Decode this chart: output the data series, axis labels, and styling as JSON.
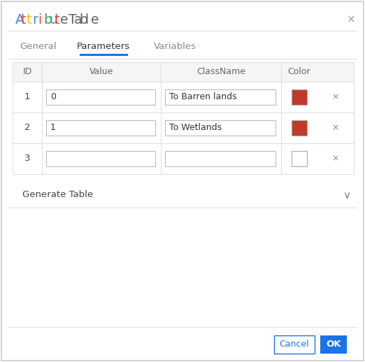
{
  "title_letters": [
    {
      "char": "A",
      "color": "#4285F4"
    },
    {
      "char": "t",
      "color": "#EA4335"
    },
    {
      "char": "t",
      "color": "#FBBC05"
    },
    {
      "char": "r",
      "color": "#4285F4"
    },
    {
      "char": "i",
      "color": "#EA4335"
    },
    {
      "char": "b",
      "color": "#34A853"
    },
    {
      "char": "u",
      "color": "#4285F4"
    },
    {
      "char": "t",
      "color": "#EA4335"
    },
    {
      "char": "e",
      "color": "#666666"
    },
    {
      "char": " ",
      "color": "#666666"
    },
    {
      "char": "T",
      "color": "#666666"
    },
    {
      "char": "a",
      "color": "#666666"
    },
    {
      "char": "b",
      "color": "#666666"
    },
    {
      "char": "l",
      "color": "#666666"
    },
    {
      "char": "e",
      "color": "#666666"
    }
  ],
  "close_symbol": "×",
  "tab_labels": [
    "General",
    "Parameters",
    "Variables"
  ],
  "active_tab_index": 1,
  "tab_underline_color": "#1a73e8",
  "col_headers": [
    "ID",
    "Value",
    "ClassName",
    "Color"
  ],
  "rows": [
    {
      "id": "1",
      "value": "0",
      "classname": "To Barren lands",
      "color": "#c0392b"
    },
    {
      "id": "2",
      "value": "1",
      "classname": "To Wetlands",
      "color": "#c0392b"
    },
    {
      "id": "3",
      "value": "",
      "classname": "",
      "color": "#ffffff"
    }
  ],
  "generate_table_text": "Generate Table",
  "cancel_text": "Cancel",
  "ok_text": "OK",
  "ok_bg": "#1a73e8",
  "ok_fg": "#ffffff",
  "cancel_border": "#1a73e8",
  "cancel_fg": "#1a73e8",
  "dialog_bg": "#ffffff",
  "divider_color": "#dddddd",
  "header_bg": "#f5f5f5",
  "header_fg": "#666666",
  "input_border": "#bbbbbb",
  "row_border": "#dddddd",
  "body_fg": "#444444"
}
